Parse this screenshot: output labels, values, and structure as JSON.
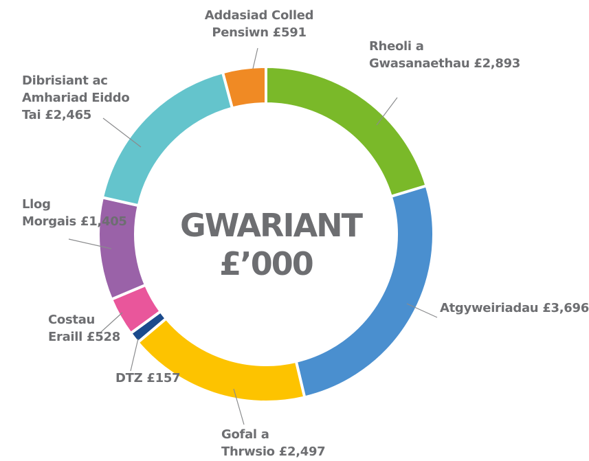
{
  "chart_data": {
    "type": "donut",
    "title": "GWARIANT £’000",
    "categories": [
      "Rheoli a Gwasanaethau",
      "Atgyweiriadau",
      "Gofal a Thrwsio",
      "DTZ",
      "Costau Eraill",
      "Llog Morgais",
      "Dibrisiant ac Amhariad Eiddo Tai",
      "Addasiad Colled Pensiwn"
    ],
    "values": [
      2893,
      3696,
      2497,
      157,
      528,
      1405,
      2465,
      591
    ],
    "value_labels": [
      "£2,893",
      "£3,696",
      "£2,497",
      "£157",
      "£528",
      "£1,405",
      "£2,465",
      "£591"
    ],
    "colors": [
      "#7ab929",
      "#4a8fcf",
      "#fdc300",
      "#1b4a8c",
      "#e9569b",
      "#9a62a8",
      "#64c4cc",
      "#f08a24"
    ]
  }
}
